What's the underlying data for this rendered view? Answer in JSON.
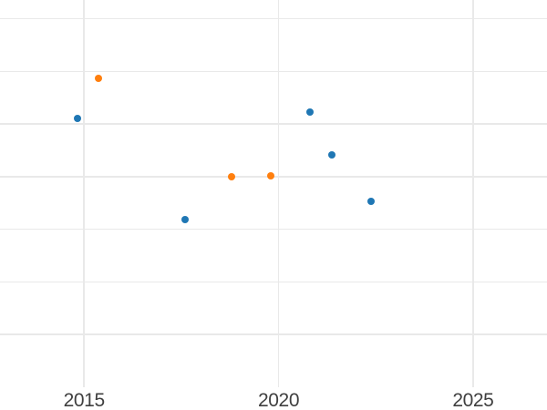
{
  "chart_data": {
    "type": "scatter",
    "title": "",
    "xlabel": "",
    "ylabel": "",
    "x_tick_labels": [
      "2015",
      "2020",
      "2025"
    ],
    "x_tick_values": [
      2015,
      2020,
      2025
    ],
    "y_tick_labels": [],
    "y_axis_unlabeled": true,
    "y_units_note": "y-axis shows no tick labels; y values are estimated in gridline units (1 unit = one gridline spacing, 0 = bottom edge of plot area)",
    "x_range": [
      2012.84,
      2026.9
    ],
    "y_range": [
      -0.44,
      7.36
    ],
    "x_gridlines": [
      2015,
      2020,
      2025
    ],
    "y_gridlines": [
      1,
      2,
      3,
      4,
      5,
      6,
      7
    ],
    "grid": true,
    "legend": false,
    "series": [
      {
        "name": "blue-series",
        "color": "#1f77b4",
        "points": [
          {
            "x": 2014.83,
            "y": 5.1
          },
          {
            "x": 2017.59,
            "y": 3.19
          },
          {
            "x": 2020.8,
            "y": 5.22
          },
          {
            "x": 2021.37,
            "y": 4.42
          },
          {
            "x": 2022.37,
            "y": 3.53
          }
        ]
      },
      {
        "name": "orange-series",
        "color": "#ff7f0e",
        "points": [
          {
            "x": 2015.38,
            "y": 5.87
          },
          {
            "x": 2018.8,
            "y": 4.0
          },
          {
            "x": 2019.81,
            "y": 4.02
          }
        ]
      }
    ],
    "colors": {
      "background": "#ffffff",
      "grid": "#e9e9e9",
      "tick_label": "#3f3f3f"
    }
  }
}
